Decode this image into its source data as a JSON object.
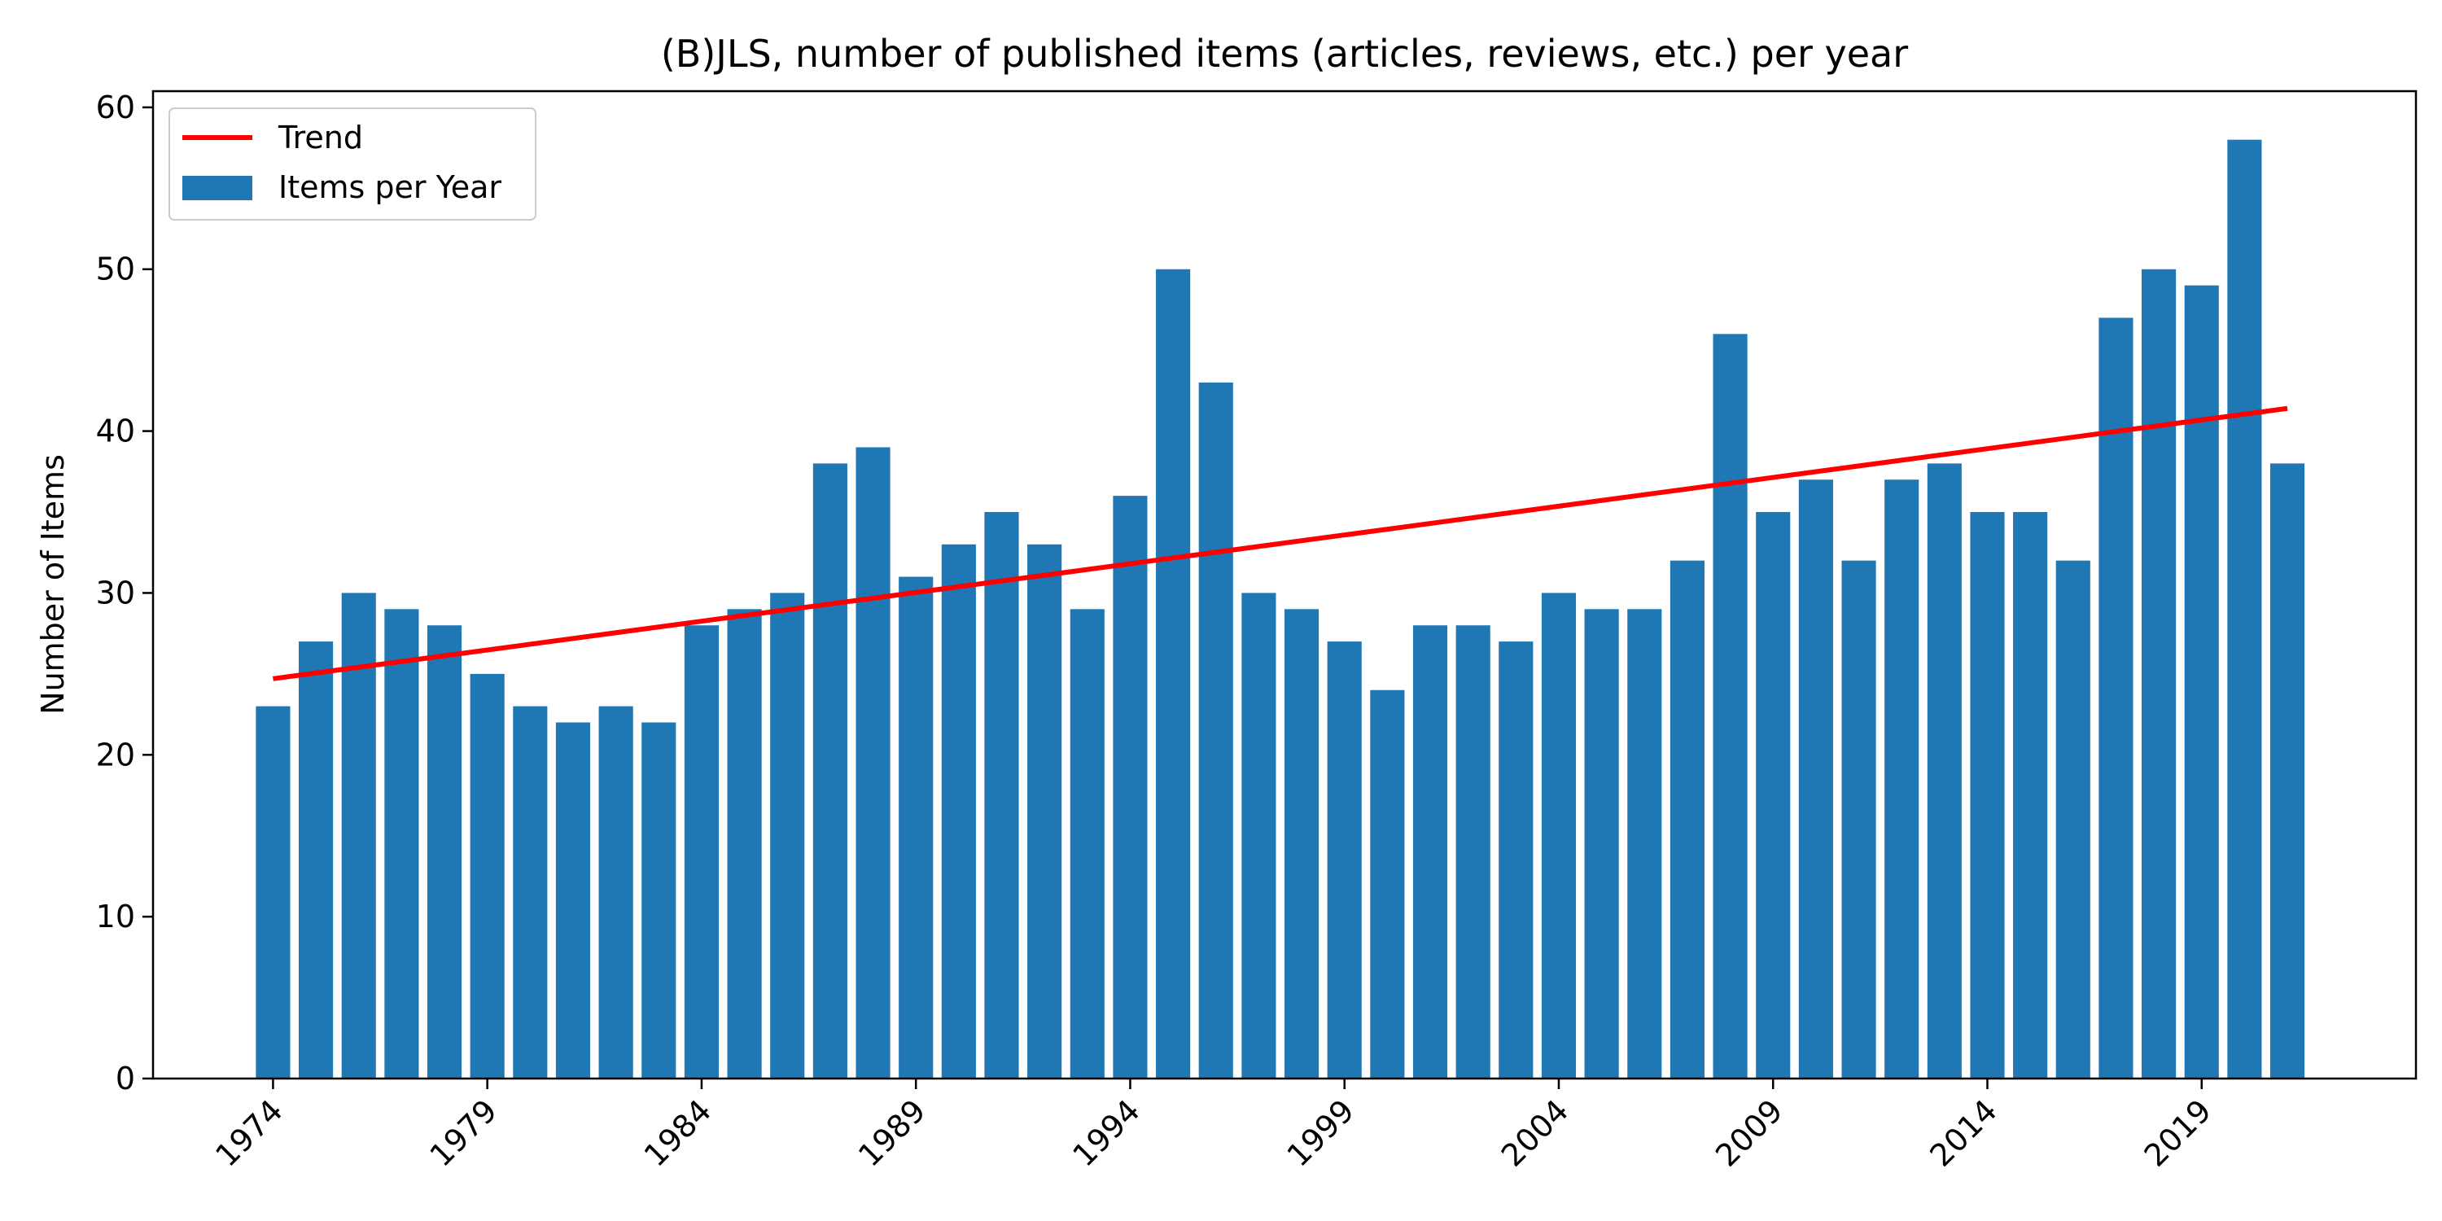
{
  "chart_data": {
    "type": "bar",
    "title": "(B)JLS, number of published items (articles, reviews, etc.) per year",
    "xlabel": "",
    "ylabel": "Number of Items",
    "xlim": [
      1971.2,
      2024.0
    ],
    "ylim": [
      0,
      61
    ],
    "yticks": [
      0,
      10,
      20,
      30,
      40,
      50,
      60
    ],
    "xticks": [
      1974,
      1979,
      1984,
      1989,
      1994,
      1999,
      2004,
      2009,
      2014,
      2019
    ],
    "grid": false,
    "legend_position": "top-left",
    "x": [
      1974,
      1975,
      1976,
      1977,
      1978,
      1979,
      1980,
      1981,
      1982,
      1983,
      1984,
      1985,
      1986,
      1987,
      1988,
      1989,
      1990,
      1991,
      1992,
      1993,
      1994,
      1995,
      1996,
      1997,
      1998,
      1999,
      2000,
      2001,
      2002,
      2003,
      2004,
      2005,
      2006,
      2007,
      2008,
      2009,
      2010,
      2011,
      2012,
      2013,
      2014,
      2015,
      2016,
      2017,
      2018,
      2019,
      2020,
      2021
    ],
    "series": [
      {
        "name": "Items per Year",
        "kind": "bar",
        "color": "#1f77b4",
        "values": [
          23,
          27,
          30,
          29,
          28,
          25,
          23,
          22,
          23,
          22,
          28,
          29,
          30,
          38,
          39,
          31,
          33,
          35,
          33,
          29,
          36,
          50,
          43,
          30,
          29,
          27,
          24,
          28,
          28,
          27,
          30,
          29,
          29,
          32,
          46,
          35,
          37,
          32,
          37,
          38,
          35,
          35,
          32,
          47,
          50,
          49,
          58,
          38
        ]
      },
      {
        "name": "Trend",
        "kind": "line",
        "color": "#ff0000",
        "x": [
          1974,
          2021
        ],
        "values": [
          24.7,
          41.4
        ]
      }
    ]
  }
}
